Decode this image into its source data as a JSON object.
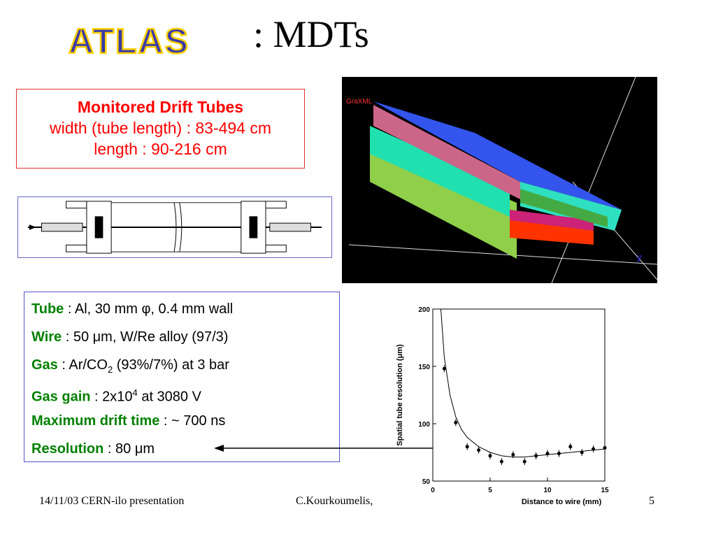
{
  "logo_text": "ATLAS",
  "title": ":  MDTs",
  "mdt_box": {
    "heading": "Monitored Drift Tubes",
    "width_line": "width (tube length) : 83-494 cm",
    "length_line": "length : 90-216 cm"
  },
  "render_label": "GraXML",
  "render_axis_label": "y",
  "specs": {
    "tube_key": "Tube",
    "tube_val": " : Al,  30 mm φ,  0.4 mm  wall",
    "wire_key": "Wire",
    "wire_val": " : 50 μm, W/Re alloy (97/3)",
    "gas_key": "Gas",
    "gas_val_a": "   : Ar/CO",
    "gas_sub": "2",
    "gas_val_b": "  (93%/7%) at 3 bar",
    "gain_key": "Gas gain",
    "gain_val_a": " :  2x10",
    "gain_sup": "4",
    "gain_val_b": "  at 3080 V",
    "drift_key": "Maximum drift time",
    "drift_val": " :  ~ 700 ns",
    "res_key": "Resolution",
    "res_val": " :  80 μm"
  },
  "colors": {
    "red_text": "#ff0000",
    "green_key": "#008000",
    "blue_border": "#5555cc"
  },
  "chart_data": {
    "type": "scatter",
    "xlabel": "Distance to wire (mm)",
    "ylabel": "Spatial tube resolution (μm)",
    "xlim": [
      0,
      15
    ],
    "ylim": [
      50,
      200
    ],
    "x_ticks": [
      "0",
      "5",
      "10",
      "15"
    ],
    "y_ticks": [
      "50",
      "100",
      "150",
      "200"
    ],
    "points": [
      {
        "x": 1,
        "y": 148
      },
      {
        "x": 2,
        "y": 101
      },
      {
        "x": 3,
        "y": 80
      },
      {
        "x": 4,
        "y": 77
      },
      {
        "x": 5,
        "y": 72
      },
      {
        "x": 6,
        "y": 67
      },
      {
        "x": 7,
        "y": 73
      },
      {
        "x": 8,
        "y": 67
      },
      {
        "x": 9,
        "y": 72
      },
      {
        "x": 10,
        "y": 74
      },
      {
        "x": 11,
        "y": 74
      },
      {
        "x": 12,
        "y": 80
      },
      {
        "x": 13,
        "y": 75
      },
      {
        "x": 14,
        "y": 78
      },
      {
        "x": 15,
        "y": 79
      }
    ],
    "fit_curve": [
      [
        0.7,
        200
      ],
      [
        1,
        158
      ],
      [
        1.5,
        125
      ],
      [
        2,
        106
      ],
      [
        2.5,
        95
      ],
      [
        3,
        88
      ],
      [
        4,
        80
      ],
      [
        5,
        75
      ],
      [
        6,
        72
      ],
      [
        7,
        71
      ],
      [
        8,
        71
      ],
      [
        9,
        72
      ],
      [
        10,
        73
      ],
      [
        11,
        74
      ],
      [
        12,
        75
      ],
      [
        13,
        76
      ],
      [
        14,
        77
      ],
      [
        15,
        78
      ]
    ]
  },
  "footer": {
    "date": "14/11/03 CERN-ilo presentation",
    "author": "C.Kourkoumelis,",
    "page": "5"
  }
}
